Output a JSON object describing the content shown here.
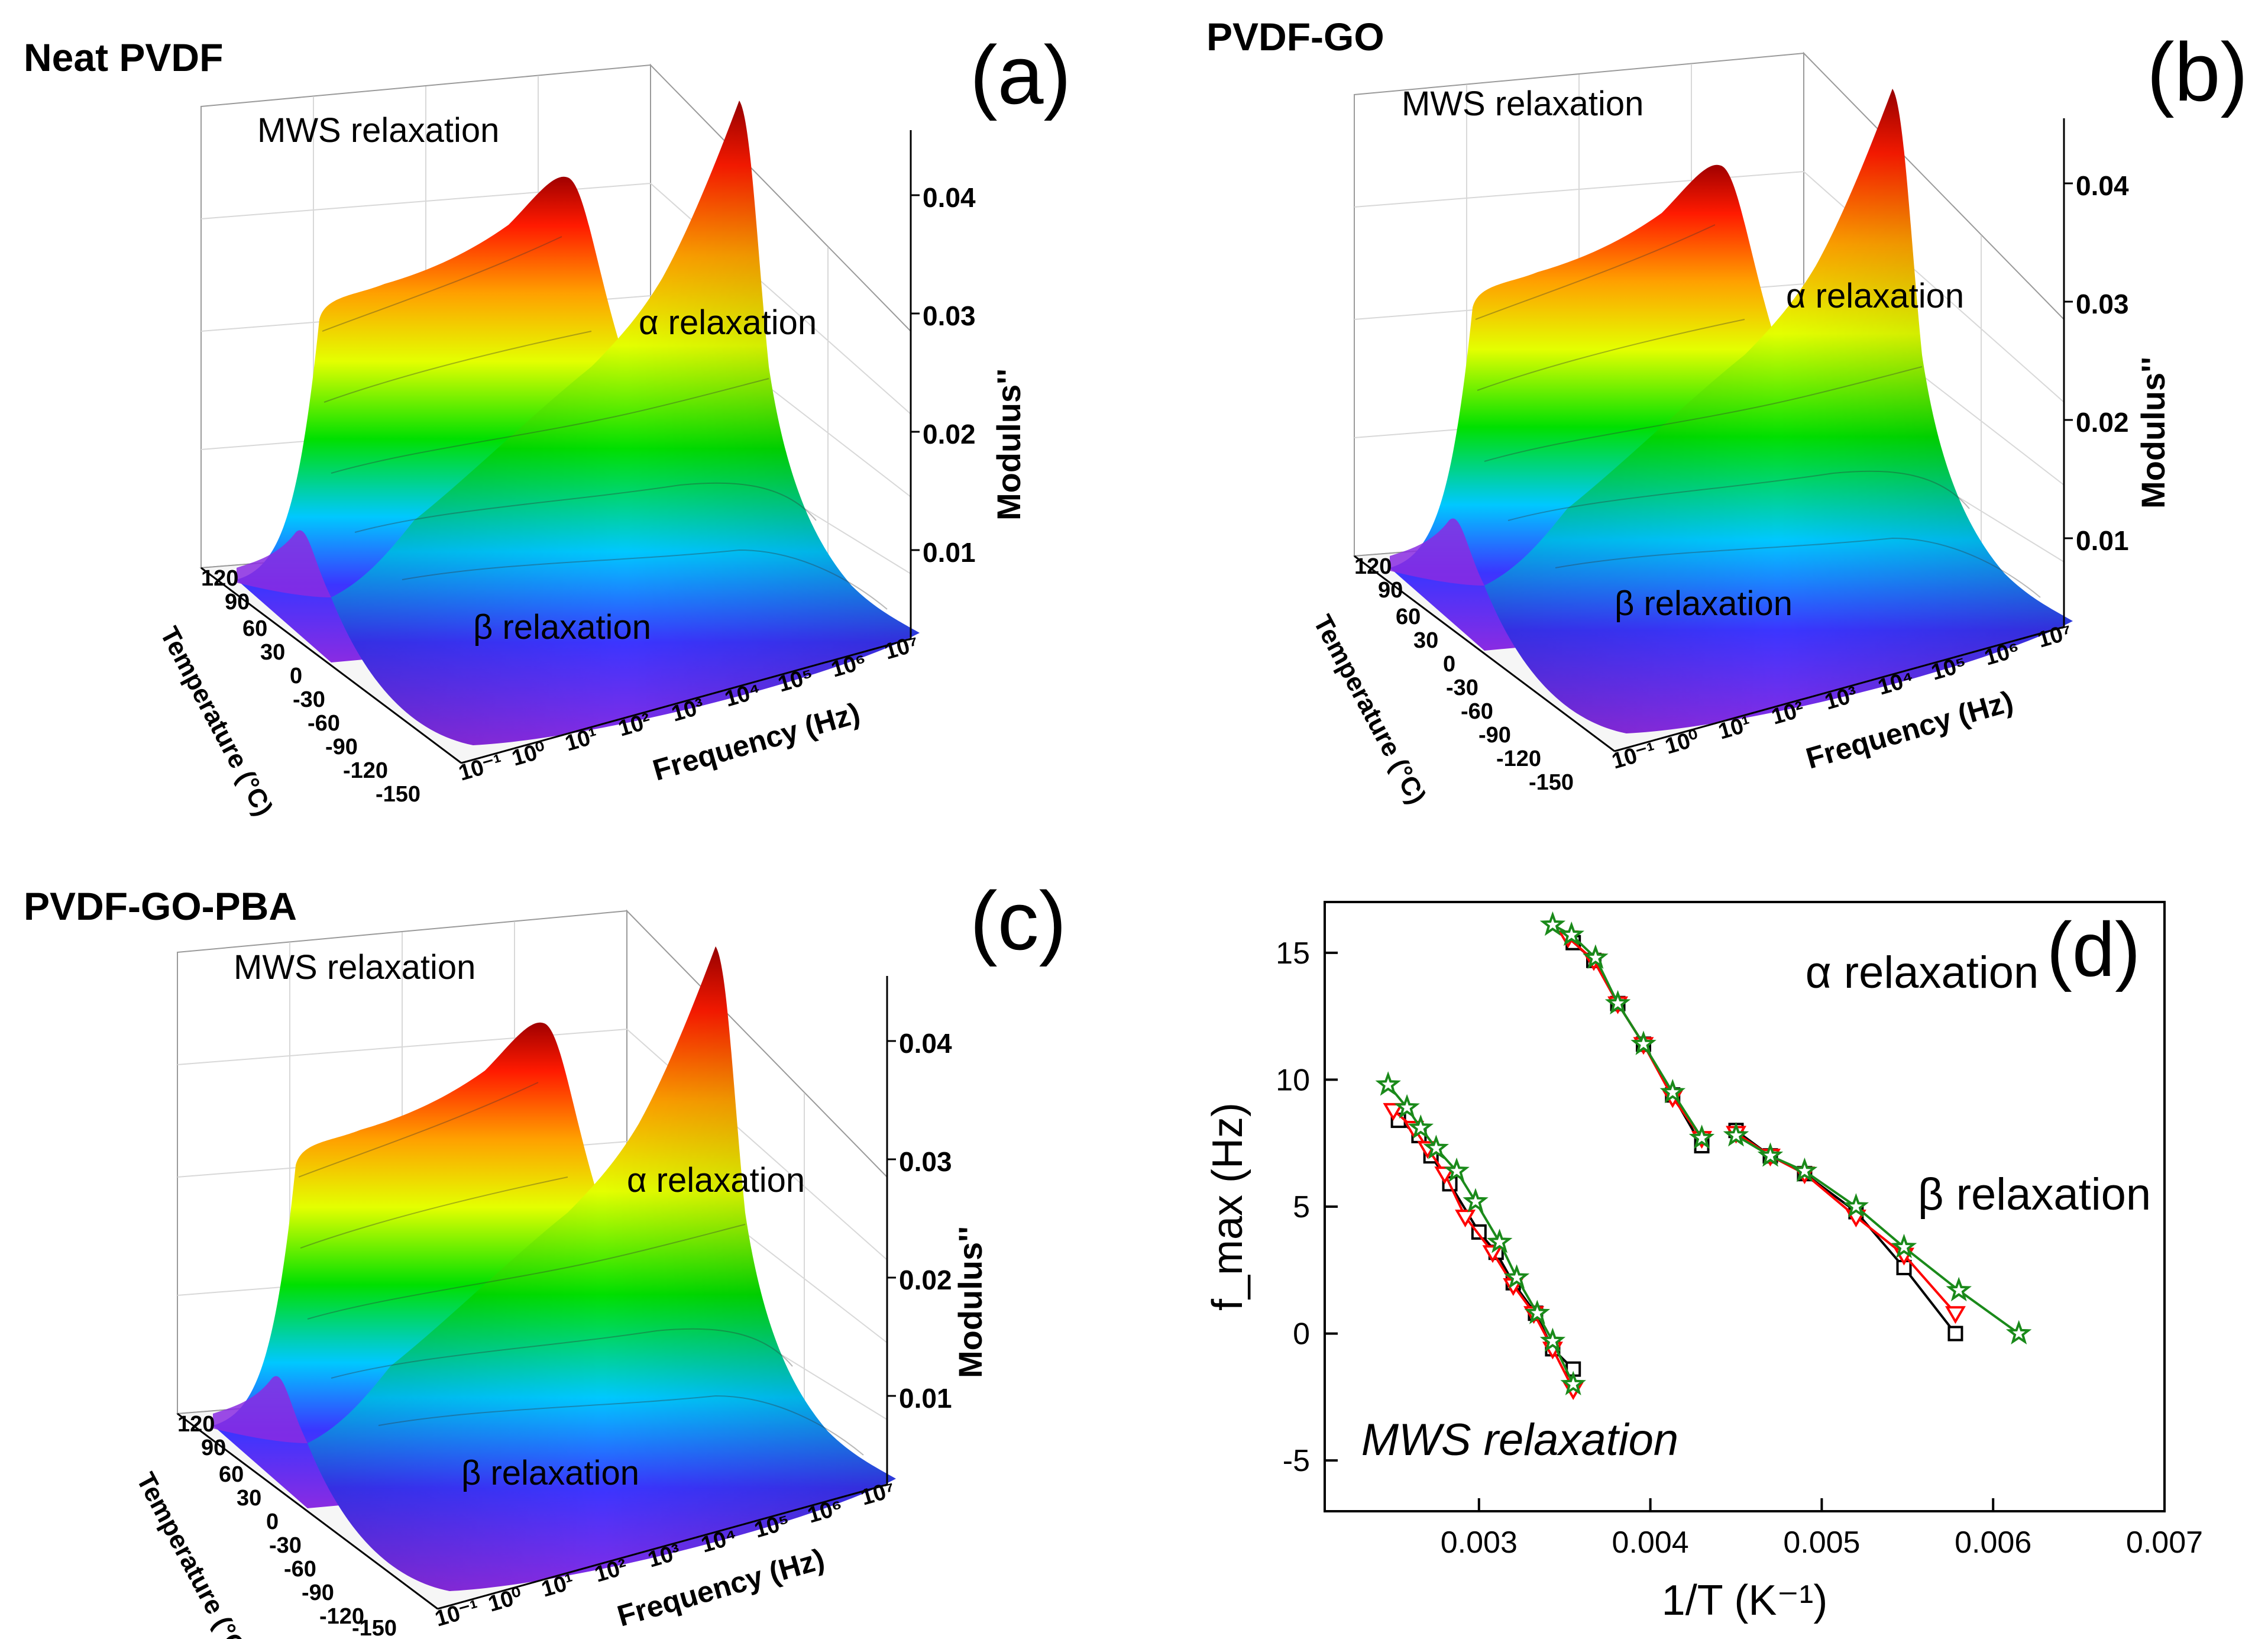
{
  "panels3d": [
    {
      "id": "a",
      "title": "Neat PVDF",
      "letter": "(a)",
      "mws_label": "MWS relaxation",
      "alpha_label": "α relaxation",
      "beta_label": "β relaxation",
      "z_axis_label": "Modulus''",
      "z_ticks": [
        "0.01",
        "0.02",
        "0.03",
        "0.04"
      ],
      "temp_axis_label": "Temperature (°C)",
      "temp_ticks": [
        "120",
        "90",
        "60",
        "30",
        "0",
        "-30",
        "-60",
        "-90",
        "-120",
        "-150"
      ],
      "freq_axis_label": "Frequency (Hz)",
      "freq_ticks": [
        "10⁻¹",
        "10⁰",
        "10¹",
        "10²",
        "10³",
        "10⁴",
        "10⁵",
        "10⁶",
        "10⁷"
      ]
    },
    {
      "id": "b",
      "title": "PVDF-GO",
      "letter": "(b)",
      "mws_label": "MWS relaxation",
      "alpha_label": "α relaxation",
      "beta_label": "β relaxation",
      "z_axis_label": "Modulus''",
      "z_ticks": [
        "0.01",
        "0.02",
        "0.03",
        "0.04"
      ],
      "temp_axis_label": "Temperature (°C)",
      "temp_ticks": [
        "120",
        "90",
        "60",
        "30",
        "0",
        "-30",
        "-60",
        "-90",
        "-120",
        "-150"
      ],
      "freq_axis_label": "Frequency (Hz)",
      "freq_ticks": [
        "10⁻¹",
        "10⁰",
        "10¹",
        "10²",
        "10³",
        "10⁴",
        "10⁵",
        "10⁶",
        "10⁷"
      ]
    },
    {
      "id": "c",
      "title": "PVDF-GO-PBA",
      "letter": "(c)",
      "mws_label": "MWS relaxation",
      "alpha_label": "α relaxation",
      "beta_label": "β relaxation",
      "z_axis_label": "Modulus''",
      "z_ticks": [
        "0.01",
        "0.02",
        "0.03",
        "0.04"
      ],
      "temp_axis_label": "Temperature (°C)",
      "temp_ticks": [
        "120",
        "90",
        "60",
        "30",
        "0",
        "-30",
        "-60",
        "-90",
        "-120",
        "-150"
      ],
      "freq_axis_label": "Frequency (Hz)",
      "freq_ticks": [
        "10⁻¹",
        "10⁰",
        "10¹",
        "10²",
        "10³",
        "10⁴",
        "10⁵",
        "10⁶",
        "10⁷"
      ]
    }
  ],
  "chart_data": {
    "type": "line",
    "letter": "(d)",
    "xlabel": "1/T (K⁻¹)",
    "ylabel": "f_max (Hz)",
    "xlim": [
      0.0021,
      0.007
    ],
    "ylim": [
      -7,
      17
    ],
    "x_ticks": [
      0.003,
      0.004,
      0.005,
      0.006,
      0.007
    ],
    "x_tick_labels": [
      "0.003",
      "0.004",
      "0.005",
      "0.006",
      "0.007"
    ],
    "y_ticks": [
      -5,
      0,
      5,
      10,
      15
    ],
    "y_tick_labels": [
      "-5",
      "0",
      "5",
      "10",
      "15"
    ],
    "annotations": [
      "α relaxation",
      "β relaxation",
      "MWS relaxation"
    ],
    "series": [
      {
        "name": "Neat PVDF",
        "color": "#000000",
        "marker": "square",
        "groups": [
          {
            "relaxation": "MWS",
            "x": [
              0.00253,
              0.00265,
              0.00272,
              0.00283,
              0.003,
              0.0031,
              0.0032,
              0.00333,
              0.00343,
              0.00355
            ],
            "y": [
              8.4,
              7.8,
              7.0,
              5.9,
              4.0,
              3.2,
              2.0,
              0.8,
              -0.6,
              -1.4
            ]
          },
          {
            "relaxation": "alpha",
            "x": [
              0.00355,
              0.00367,
              0.00381,
              0.00396,
              0.00413,
              0.0043
            ],
            "y": [
              15.4,
              14.7,
              13.0,
              11.4,
              9.4,
              7.4
            ]
          },
          {
            "relaxation": "beta",
            "x": [
              0.0045,
              0.0047,
              0.0049,
              0.0052,
              0.00548,
              0.00578
            ],
            "y": [
              8.0,
              7.0,
              6.3,
              4.8,
              2.6,
              0.0
            ]
          }
        ]
      },
      {
        "name": "PVDF-GO",
        "color": "#ff0000",
        "marker": "triangle-down",
        "groups": [
          {
            "relaxation": "MWS",
            "x": [
              0.0025,
              0.00262,
              0.0027,
              0.0028,
              0.00292,
              0.00308,
              0.0032,
              0.00332,
              0.00343,
              0.00355
            ],
            "y": [
              8.8,
              8.1,
              7.3,
              6.3,
              4.6,
              3.2,
              1.9,
              0.8,
              -0.6,
              -2.2
            ]
          },
          {
            "relaxation": "alpha",
            "x": [
              0.00352,
              0.00367,
              0.00381,
              0.00396,
              0.00413,
              0.0043
            ],
            "y": [
              15.6,
              14.7,
              13.0,
              11.4,
              9.3,
              7.7
            ]
          },
          {
            "relaxation": "beta",
            "x": [
              0.0045,
              0.0047,
              0.0049,
              0.0052,
              0.00548,
              0.00578
            ],
            "y": [
              7.9,
              7.0,
              6.3,
              4.6,
              3.1,
              0.8
            ]
          }
        ]
      },
      {
        "name": "PVDF-GO-PBA",
        "color": "#1a8a1a",
        "marker": "star",
        "groups": [
          {
            "relaxation": "MWS",
            "x": [
              0.00247,
              0.00258,
              0.00266,
              0.00275,
              0.00287,
              0.00298,
              0.00312,
              0.00322,
              0.00334,
              0.00343,
              0.00355
            ],
            "y": [
              9.8,
              8.9,
              8.1,
              7.3,
              6.4,
              5.2,
              3.6,
              2.2,
              0.8,
              -0.3,
              -2.0
            ]
          },
          {
            "relaxation": "alpha",
            "x": [
              0.00343,
              0.00354,
              0.00368,
              0.00381,
              0.00396,
              0.00413,
              0.0043
            ],
            "y": [
              16.1,
              15.7,
              14.8,
              13.0,
              11.4,
              9.5,
              7.7
            ]
          },
          {
            "relaxation": "beta",
            "x": [
              0.0045,
              0.0047,
              0.0049,
              0.0052,
              0.00548,
              0.0058,
              0.00615
            ],
            "y": [
              7.8,
              7.0,
              6.4,
              5.0,
              3.4,
              1.7,
              0.0
            ]
          }
        ]
      }
    ]
  }
}
